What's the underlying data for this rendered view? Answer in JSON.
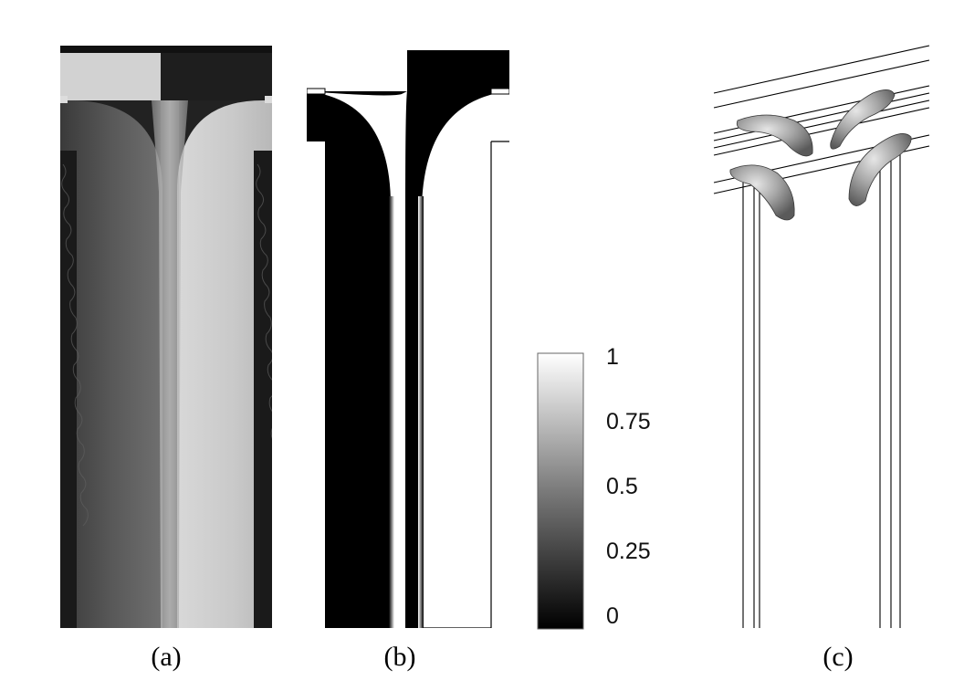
{
  "panels": [
    {
      "id": "a",
      "caption": "(a)"
    },
    {
      "id": "b",
      "caption": "(b)"
    },
    {
      "id": "c",
      "caption": "(c)"
    }
  ],
  "colorbar": {
    "type": "grayscale",
    "ticks": [
      "1",
      "0.75",
      "0.5",
      "0.25",
      "0"
    ],
    "colors": {
      "low": "#000000",
      "high": "#ffffff"
    }
  }
}
